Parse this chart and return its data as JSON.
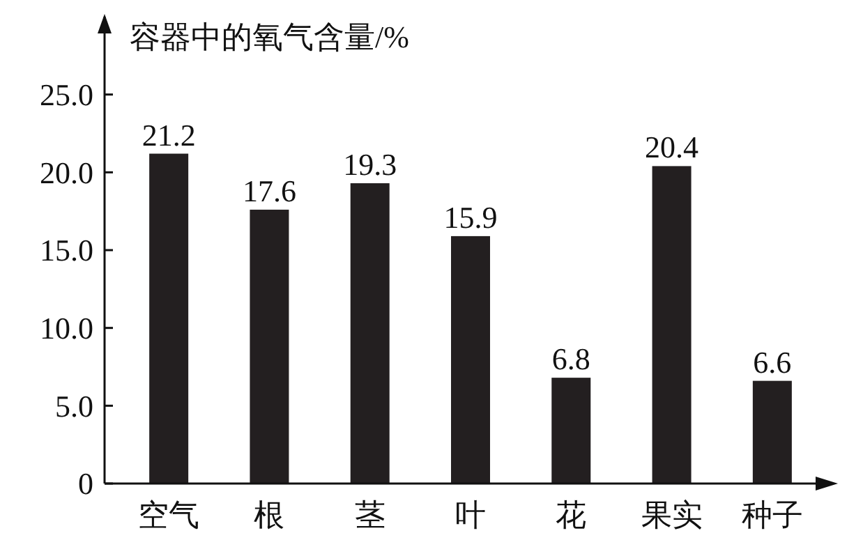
{
  "chart_data": {
    "type": "bar",
    "ylabel": "容器中的氧气含量/%",
    "categories": [
      "空气",
      "根",
      "茎",
      "叶",
      "花",
      "果实",
      "种子"
    ],
    "values": [
      21.2,
      17.6,
      19.3,
      15.9,
      6.8,
      20.4,
      6.6
    ],
    "color": "#231f20",
    "ylim": [
      0,
      30
    ],
    "yticks": [
      {
        "value": 0,
        "label": "0"
      },
      {
        "value": 5,
        "label": "5.0"
      },
      {
        "value": 10,
        "label": "10.0"
      },
      {
        "value": 15,
        "label": "15.0"
      },
      {
        "value": 20,
        "label": "20.0"
      },
      {
        "value": 25,
        "label": "25.0"
      }
    ],
    "data_labels": true,
    "grid": false
  }
}
